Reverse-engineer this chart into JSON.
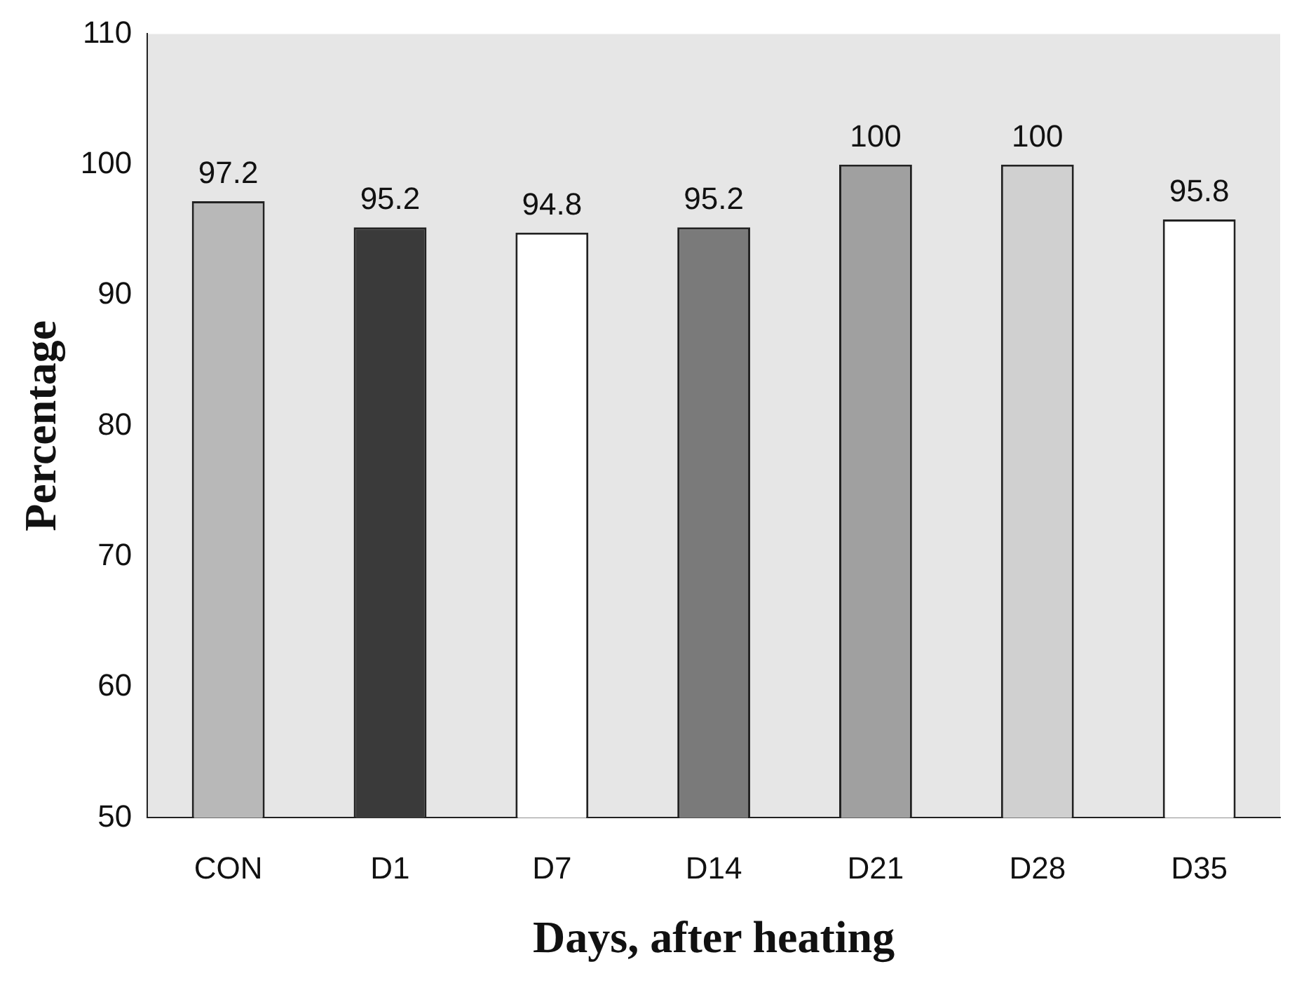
{
  "chart_data": {
    "type": "bar",
    "xlabel": "Days, after heating",
    "ylabel": "Percentage",
    "categories": [
      "CON",
      "D1",
      "D7",
      "D14",
      "D21",
      "D28",
      "D35"
    ],
    "values": [
      97.2,
      95.2,
      94.8,
      95.2,
      100,
      100,
      95.8
    ],
    "colors": [
      "#b8b8b8",
      "#3a3a3a",
      "#ffffff",
      "#7a7a7a",
      "#a0a0a0",
      "#d0d0d0",
      "#ffffff"
    ],
    "data_labels": true,
    "ylim": [
      50,
      110
    ],
    "yticks": [
      50,
      60,
      70,
      80,
      90,
      100,
      110
    ],
    "grid": false,
    "legend": false
  }
}
